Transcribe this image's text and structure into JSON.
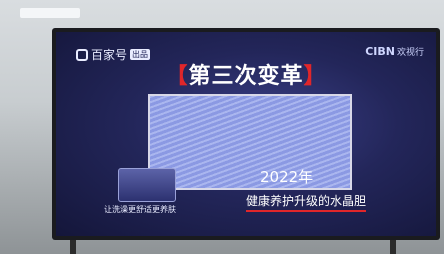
{
  "logo": {
    "name": "百家号",
    "badge": "出品"
  },
  "brand": {
    "name": "CIBN",
    "suffix": "欢视行"
  },
  "title": {
    "open": "【",
    "text": "第三次变革",
    "close": "】"
  },
  "year": "2022年",
  "caption": "健康养护升级的水晶胆",
  "product_caption": "让洗澡更舒适更养肤"
}
